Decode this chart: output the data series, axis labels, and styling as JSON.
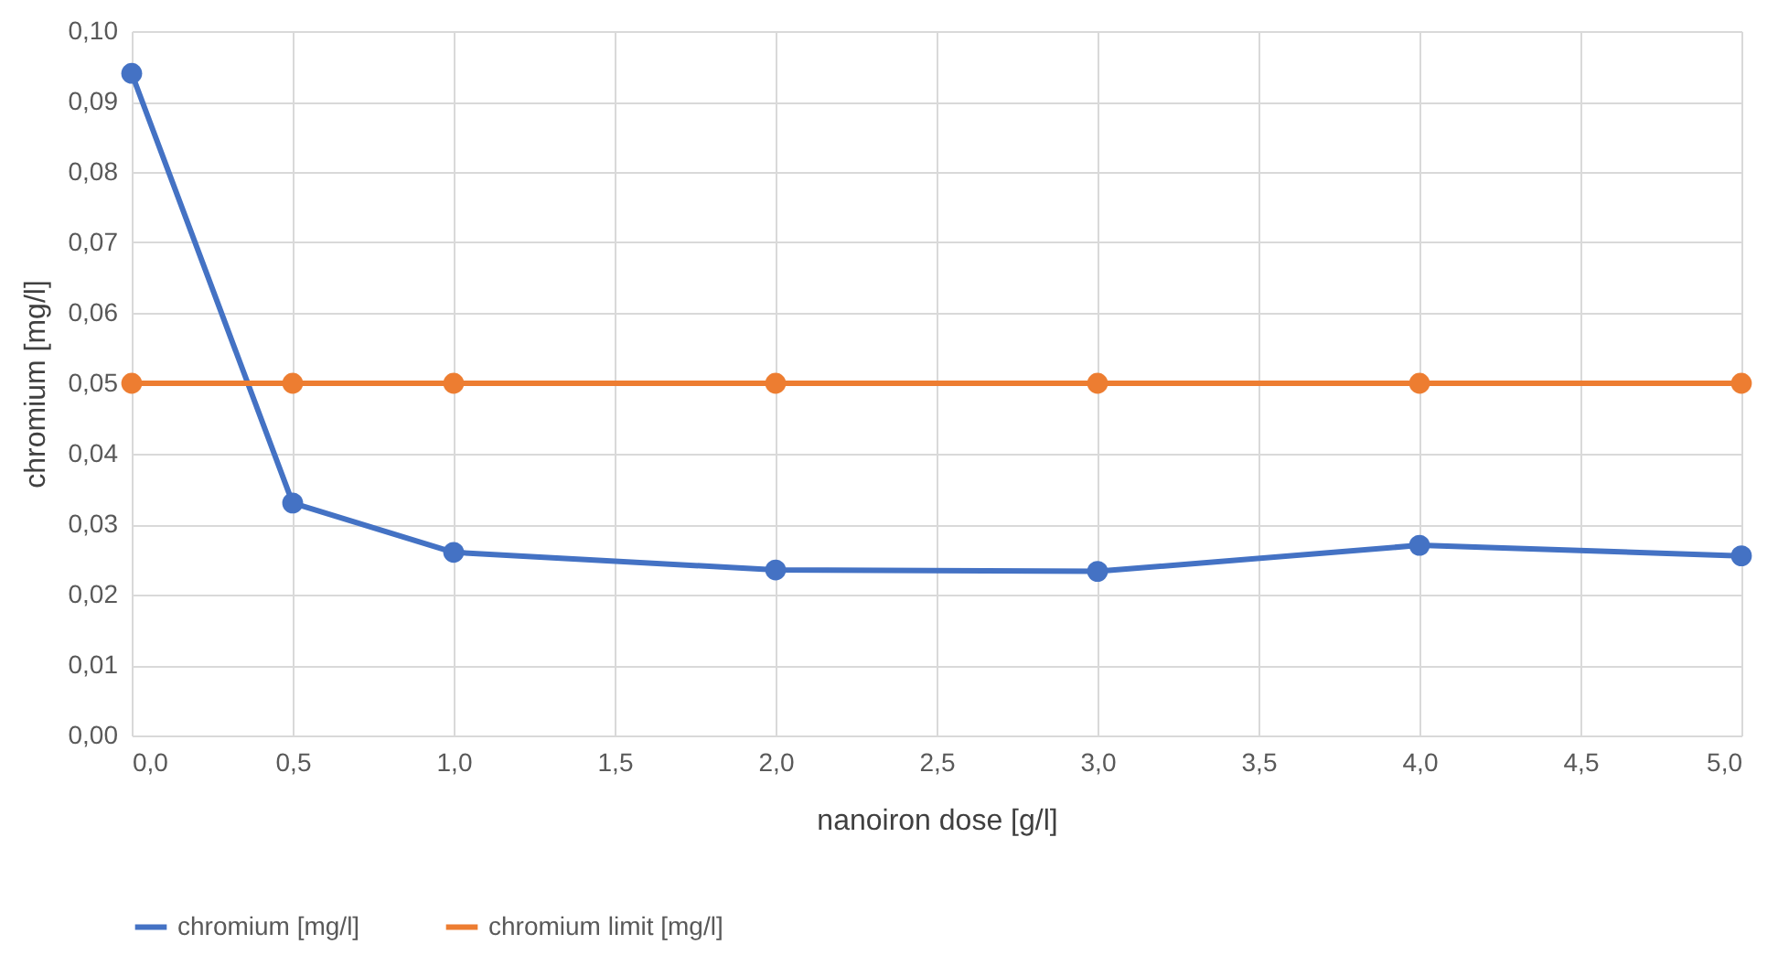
{
  "chart_data": {
    "type": "line",
    "xlabel": "nanoiron dose [g/l]",
    "ylabel": "chromium [mg/l]",
    "x": [
      0,
      0.5,
      1,
      2,
      3,
      4,
      5
    ],
    "series": [
      {
        "name": "chromium [mg/l]",
        "color": "#4472c4",
        "values": [
          0.094,
          0.033,
          0.026,
          0.0235,
          0.0233,
          0.027,
          0.0255
        ]
      },
      {
        "name": "chromium limit [mg/l]",
        "color": "#ed7d31",
        "values": [
          0.05,
          0.05,
          0.05,
          0.05,
          0.05,
          0.05,
          0.05
        ]
      }
    ],
    "xlim": [
      0,
      5
    ],
    "ylim": [
      0,
      0.1
    ],
    "xticks": [
      {
        "value": 0,
        "label": "0,0"
      },
      {
        "value": 0.5,
        "label": "0,5"
      },
      {
        "value": 1,
        "label": "1,0"
      },
      {
        "value": 1.5,
        "label": "1,5"
      },
      {
        "value": 2,
        "label": "2,0"
      },
      {
        "value": 2.5,
        "label": "2,5"
      },
      {
        "value": 3,
        "label": "3,0"
      },
      {
        "value": 3.5,
        "label": "3,5"
      },
      {
        "value": 4,
        "label": "4,0"
      },
      {
        "value": 4.5,
        "label": "4,5"
      },
      {
        "value": 5,
        "label": "5,0"
      }
    ],
    "yticks": [
      {
        "value": 0,
        "label": "0,00"
      },
      {
        "value": 0.01,
        "label": "0,01"
      },
      {
        "value": 0.02,
        "label": "0,02"
      },
      {
        "value": 0.03,
        "label": "0,03"
      },
      {
        "value": 0.04,
        "label": "0,04"
      },
      {
        "value": 0.05,
        "label": "0,05"
      },
      {
        "value": 0.06,
        "label": "0,06"
      },
      {
        "value": 0.07,
        "label": "0,07"
      },
      {
        "value": 0.08,
        "label": "0,08"
      },
      {
        "value": 0.09,
        "label": "0,09"
      },
      {
        "value": 0.1,
        "label": "0,10"
      }
    ],
    "grid": true,
    "legend": "bottom",
    "marker": "circle",
    "line_style": "solid"
  }
}
